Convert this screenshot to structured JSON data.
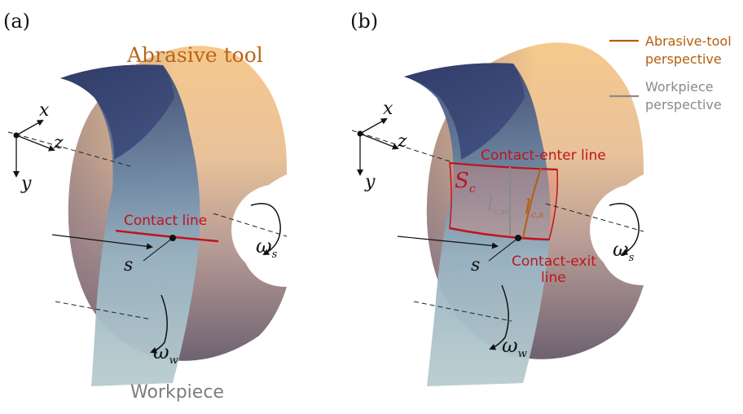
{
  "panel_a": {
    "label": "(a)",
    "tool_label": "Abrasive tool",
    "workpiece_label": "Workpiece",
    "contact_line_label": "Contact line",
    "axis_x": "x",
    "axis_y": "y",
    "axis_z": "z",
    "s_label": "s",
    "omega_s": "ω",
    "omega_s_sub": "s",
    "omega_w": "ω",
    "omega_w_sub": "w"
  },
  "panel_b": {
    "label": "(b)",
    "contact_enter_label": "Contact-enter line",
    "contact_exit_label_1": "Contact-exit",
    "contact_exit_label_2": "line",
    "sc_main": "S",
    "sc_sub": "c",
    "lcw_main": "l",
    "lcw_sub": "c,w",
    "lcs_main": "l",
    "lcs_sub": "c,s",
    "axis_x": "x",
    "axis_y": "y",
    "axis_z": "z",
    "s_label": "s",
    "omega_s": "ω",
    "omega_s_sub": "s",
    "omega_w": "ω",
    "omega_w_sub": "w"
  },
  "legend": {
    "tool_line1": "Abrasive-tool",
    "tool_line2": "perspective",
    "workpiece_line1": "Workpiece",
    "workpiece_line2": "perspective",
    "tool_color": "#b25f0d",
    "workpiece_color": "#8a8a8a"
  },
  "colors": {
    "contact": "#c0141c",
    "tool_text": "#b8651a",
    "workpiece_text": "#7d7d7d"
  }
}
